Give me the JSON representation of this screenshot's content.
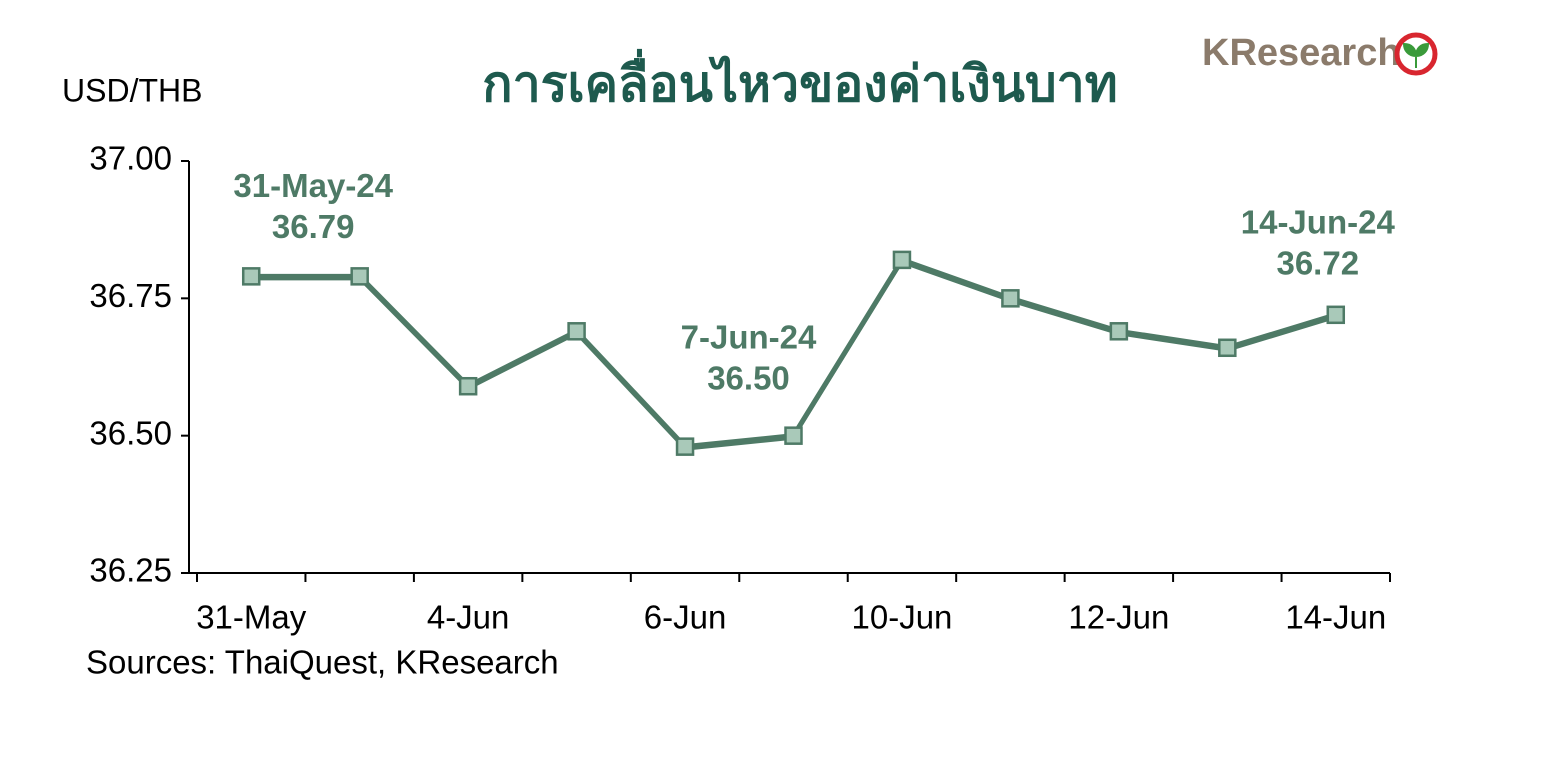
{
  "logo": "KResearch",
  "chart_data": {
    "type": "line",
    "title": "การเคลื่อนไหวของค่าเงินบาท",
    "y_label": "USD/THB",
    "source": "Sources: ThaiQuest, KResearch",
    "categories": [
      "31-May",
      null,
      "4-Jun",
      null,
      "6-Jun",
      null,
      "10-Jun",
      null,
      "12-Jun",
      null,
      "14-Jun"
    ],
    "series": [
      {
        "color": "#4e7a66",
        "marker_color": "#a9c9b9",
        "values": [
          36.79,
          36.79,
          36.59,
          36.69,
          36.48,
          36.5,
          36.82,
          36.75,
          36.69,
          36.66,
          36.72
        ],
        "point_labels": [
          "31-May-24",
          null,
          null,
          null,
          null,
          "7-Jun-24",
          null,
          null,
          null,
          null,
          "14-Jun-24"
        ],
        "value_labels": [
          "36.79",
          null,
          null,
          null,
          null,
          "36.50",
          null,
          null,
          null,
          null,
          "36.72"
        ]
      }
    ],
    "ylim": [
      36.25,
      37.0
    ],
    "yticks": [
      {
        "value": 36.25,
        "label": "36.25"
      },
      {
        "value": 36.5,
        "label": "36.50"
      },
      {
        "value": 36.75,
        "label": "36.75"
      },
      {
        "value": 37.0,
        "label": "37.00"
      }
    ],
    "grid": false
  }
}
